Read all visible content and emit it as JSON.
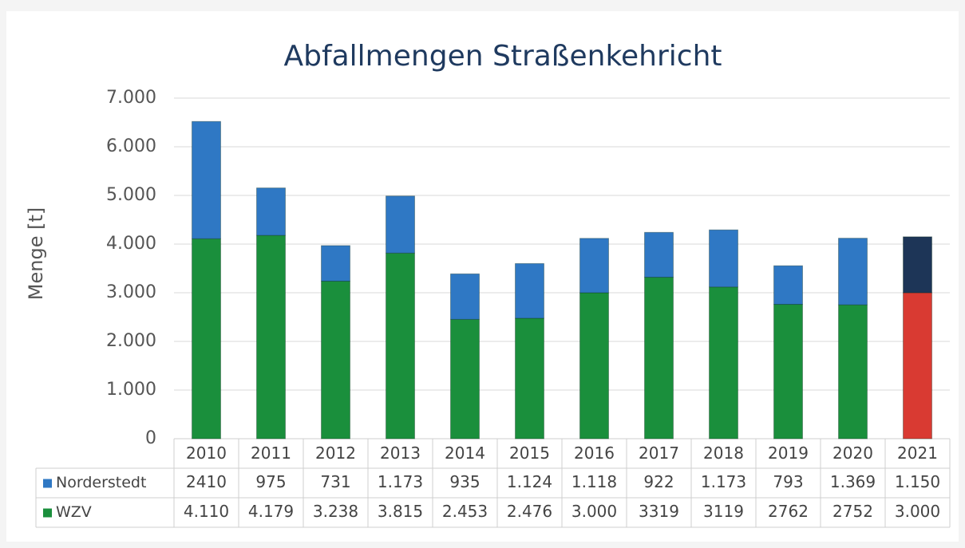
{
  "chart_data": {
    "type": "stacked_bar",
    "title": "Abfallmengen Straßenkehricht",
    "y_label": "Menge [t]",
    "categories": [
      "2010",
      "2011",
      "2012",
      "2013",
      "2014",
      "2015",
      "2016",
      "2017",
      "2018",
      "2019",
      "2020",
      "2021"
    ],
    "series": [
      {
        "name": "WZV",
        "color": "#1a8f3c",
        "colors": [
          "#1a8f3c",
          "#1a8f3c",
          "#1a8f3c",
          "#1a8f3c",
          "#1a8f3c",
          "#1a8f3c",
          "#1a8f3c",
          "#1a8f3c",
          "#1a8f3c",
          "#1a8f3c",
          "#1a8f3c",
          "#d93a32"
        ],
        "values": [
          4110,
          4179,
          3238,
          3815,
          2453,
          2476,
          3000,
          3319,
          3119,
          2762,
          2752,
          3000
        ],
        "value_labels": [
          "4.110",
          "4.179",
          "3.238",
          "3.815",
          "2.453",
          "2.476",
          "3.000",
          "3319",
          "3119",
          "2762",
          "2752",
          "3.000"
        ]
      },
      {
        "name": "Norderstedt",
        "color": "#2f78c4",
        "colors": [
          "#2f78c4",
          "#2f78c4",
          "#2f78c4",
          "#2f78c4",
          "#2f78c4",
          "#2f78c4",
          "#2f78c4",
          "#2f78c4",
          "#2f78c4",
          "#2f78c4",
          "#2f78c4",
          "#1d3557"
        ],
        "values": [
          2410,
          975,
          731,
          1173,
          935,
          1124,
          1118,
          922,
          1173,
          793,
          1369,
          1150
        ],
        "value_labels": [
          "2410",
          "975",
          "731",
          "1.173",
          "935",
          "1.124",
          "1.118",
          "922",
          "1.173",
          "793",
          "1.369",
          "1.150"
        ]
      }
    ],
    "ylim": [
      0,
      7000
    ],
    "yticks": [
      0,
      {
        "value": 1000,
        "label": "1.000"
      },
      {
        "value": 2000,
        "label": "2.000"
      },
      {
        "value": 3000,
        "label": "3.000"
      },
      {
        "value": 4000,
        "label": "4.000"
      },
      {
        "value": 5000,
        "label": "5.000"
      },
      {
        "value": 6000,
        "label": "6.000"
      },
      {
        "value": 7000,
        "label": "7.000"
      }
    ],
    "grid": true
  }
}
